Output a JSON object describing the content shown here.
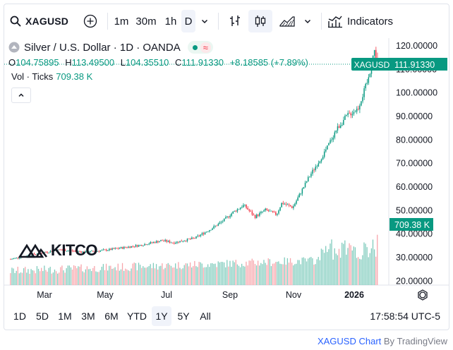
{
  "toolbar": {
    "symbol": "XAGUSD",
    "intervals": [
      "1m",
      "30m",
      "1h",
      "D"
    ],
    "active_interval": "D",
    "indicators_label": "Indicators"
  },
  "legend": {
    "title": "Silver / U.S. Dollar · 1D · OANDA",
    "market_status": "open",
    "approx_symbol": "≈",
    "o_label": "O",
    "o_value": "104.75895",
    "h_label": "H",
    "h_value": "113.49500",
    "l_label": "L",
    "l_value": "104.35510",
    "c_label": "C",
    "c_value": "111.91330",
    "change": "+8.18585 (+7.89%)",
    "vol_label": "Vol · Ticks",
    "vol_value": "709.38 K"
  },
  "chart_data": {
    "type": "candlestick",
    "price_axis": {
      "ticks": [
        "120.00000",
        "110.00000",
        "100.00000",
        "90.00000",
        "80.00000",
        "70.00000",
        "60.00000",
        "50.00000",
        "40.00000",
        "30.00000",
        "20.00000"
      ],
      "range": [
        18,
        123
      ]
    },
    "time_axis": {
      "ticks": [
        "Mar",
        "May",
        "Jul",
        "Sep",
        "Nov",
        "2026"
      ]
    },
    "current_price_label": {
      "symbol": "XAGUSD",
      "value": "111.91330"
    },
    "volume_label": "709.38 K",
    "colors": {
      "up": "#089981",
      "down": "#f23645",
      "up_vol": "#7fcbbc",
      "down_vol": "#f7a5ab"
    }
  },
  "watermark": {
    "text": "KITCO"
  },
  "bottombar": {
    "ranges": [
      "1D",
      "5D",
      "1M",
      "3M",
      "6M",
      "YTD",
      "1Y",
      "5Y",
      "All"
    ],
    "active_range": "1Y",
    "clock": "17:58:54 UTC-5"
  },
  "attribution": {
    "symbol_link": "XAGUSD Chart",
    "by": "By",
    "brand": "TradingView"
  }
}
